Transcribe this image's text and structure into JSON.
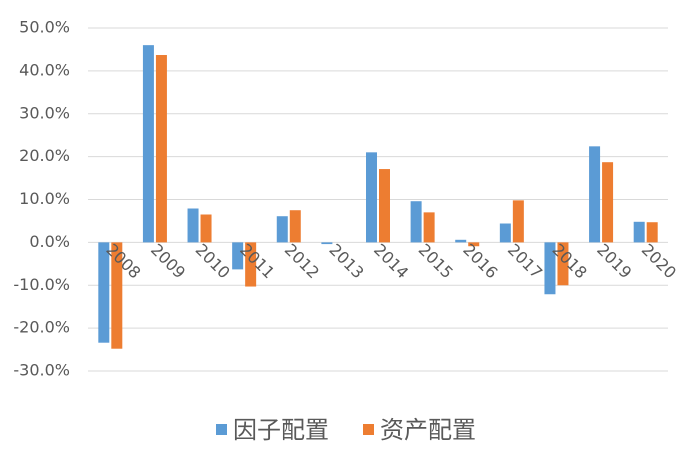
{
  "chart_data": {
    "type": "bar",
    "categories": [
      "2008",
      "2009",
      "2010",
      "2011",
      "2012",
      "2013",
      "2014",
      "2015",
      "2016",
      "2017",
      "2018",
      "2019",
      "2020"
    ],
    "series": [
      {
        "name": "因子配置",
        "color": "#5b9bd5",
        "values": [
          -23.4,
          46.0,
          7.9,
          -6.3,
          6.1,
          -0.4,
          21.0,
          9.6,
          0.6,
          4.4,
          -12.1,
          22.4,
          4.8
        ]
      },
      {
        "name": "资产配置",
        "color": "#ed7d31",
        "values": [
          -24.8,
          43.7,
          6.5,
          -10.3,
          7.5,
          0,
          17.1,
          7.0,
          -0.9,
          9.8,
          -10.0,
          18.7,
          4.7
        ]
      }
    ],
    "ylim": [
      -30,
      50
    ],
    "yticks": [
      {
        "value": -30,
        "label": "-30.0%"
      },
      {
        "value": -20,
        "label": "-20.0%"
      },
      {
        "value": -10,
        "label": "-10.0%"
      },
      {
        "value": 0,
        "label": "0.0%"
      },
      {
        "value": 10,
        "label": "10.0%"
      },
      {
        "value": 20,
        "label": "20.0%"
      },
      {
        "value": 30,
        "label": "30.0%"
      },
      {
        "value": 40,
        "label": "40.0%"
      },
      {
        "value": 50,
        "label": "50.0%"
      }
    ],
    "grid": true,
    "legend": "bottom"
  }
}
